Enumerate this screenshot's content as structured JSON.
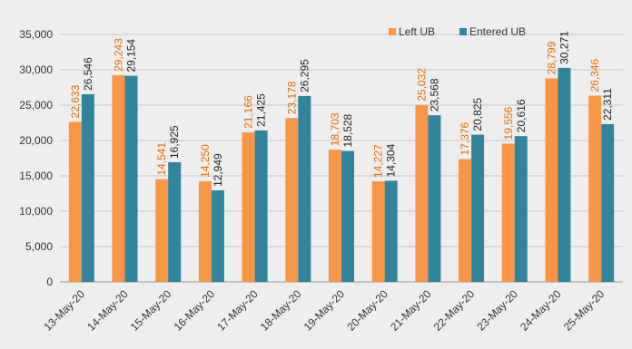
{
  "chart_data": {
    "type": "bar",
    "title": "",
    "xlabel": "",
    "ylabel": "",
    "ylim": [
      0,
      35000
    ],
    "yticks": [
      0,
      5000,
      10000,
      15000,
      20000,
      25000,
      30000,
      35000
    ],
    "ytick_labels": [
      "0",
      "5,000",
      "10,000",
      "15,000",
      "20,000",
      "25,000",
      "30,000",
      "35,000"
    ],
    "grid": true,
    "legend_position": "top-right",
    "categories": [
      "13-May-20",
      "14-May-20",
      "15-May-20",
      "16-May-20",
      "17-May-20",
      "18-May-20",
      "19-May-20",
      "20-May-20",
      "21-May-20",
      "22-May-20",
      "23-May-20",
      "24-May-20",
      "25-May-20"
    ],
    "series": [
      {
        "name": "Left UB",
        "color": "#F79646",
        "label_color": "#E36C0A",
        "values": [
          22633,
          29243,
          14541,
          14250,
          21166,
          23178,
          18703,
          14227,
          25032,
          17376,
          19556,
          28799,
          26346
        ],
        "labels": [
          "22,633",
          "29,243",
          "14,541",
          "14,250",
          "21,166",
          "23,178",
          "18,703",
          "14,227",
          "25,032",
          "17,376",
          "19,556",
          "28,799",
          "26,346"
        ]
      },
      {
        "name": "Entered UB",
        "color": "#31849B",
        "label_color": "#222222",
        "values": [
          26546,
          29154,
          16925,
          12949,
          21425,
          26295,
          18528,
          14304,
          23568,
          20825,
          20616,
          30271,
          22311
        ],
        "labels": [
          "26,546",
          "29,154",
          "16,925",
          "12,949",
          "21,425",
          "26,295",
          "18,528",
          "14,304",
          "23,568",
          "20,825",
          "20,616",
          "30,271",
          "22,311"
        ]
      }
    ]
  }
}
